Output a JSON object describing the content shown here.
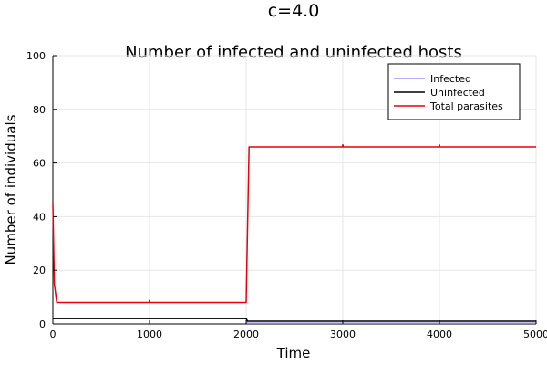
{
  "chart_data": {
    "type": "line",
    "suptitle": "c=4.0",
    "title": "Number of infected and uninfected hosts",
    "xlabel": "Time",
    "ylabel": "Number of individuals",
    "xlim": [
      0,
      5000
    ],
    "ylim": [
      0,
      100
    ],
    "xticks": [
      0,
      1000,
      2000,
      3000,
      4000,
      5000
    ],
    "yticks": [
      0,
      20,
      40,
      60,
      80,
      100
    ],
    "grid": true,
    "legend_position": "top-right",
    "series": [
      {
        "name": "Infected",
        "color": "#9999ff",
        "points": [
          [
            0,
            2
          ],
          [
            10,
            2
          ],
          [
            1995,
            2
          ],
          [
            2000,
            2
          ],
          [
            2010,
            0.3
          ],
          [
            2030,
            0.3
          ],
          [
            5000,
            0.3
          ]
        ]
      },
      {
        "name": "Uninfected",
        "color": "#000000",
        "points": [
          [
            0,
            2
          ],
          [
            1995,
            2
          ],
          [
            2000,
            2
          ],
          [
            2015,
            1
          ],
          [
            5000,
            1
          ]
        ]
      },
      {
        "name": "Total parasites",
        "color": "#e8000b",
        "points": [
          [
            0,
            45
          ],
          [
            15,
            15
          ],
          [
            40,
            8
          ],
          [
            995,
            8
          ],
          [
            1000,
            8.8
          ],
          [
            1005,
            8
          ],
          [
            1995,
            8
          ],
          [
            2000,
            8
          ],
          [
            2030,
            66
          ],
          [
            2995,
            66
          ],
          [
            3000,
            66.8
          ],
          [
            3005,
            66
          ],
          [
            3995,
            66
          ],
          [
            4000,
            66.8
          ],
          [
            4005,
            66
          ],
          [
            5000,
            66
          ]
        ]
      }
    ]
  }
}
